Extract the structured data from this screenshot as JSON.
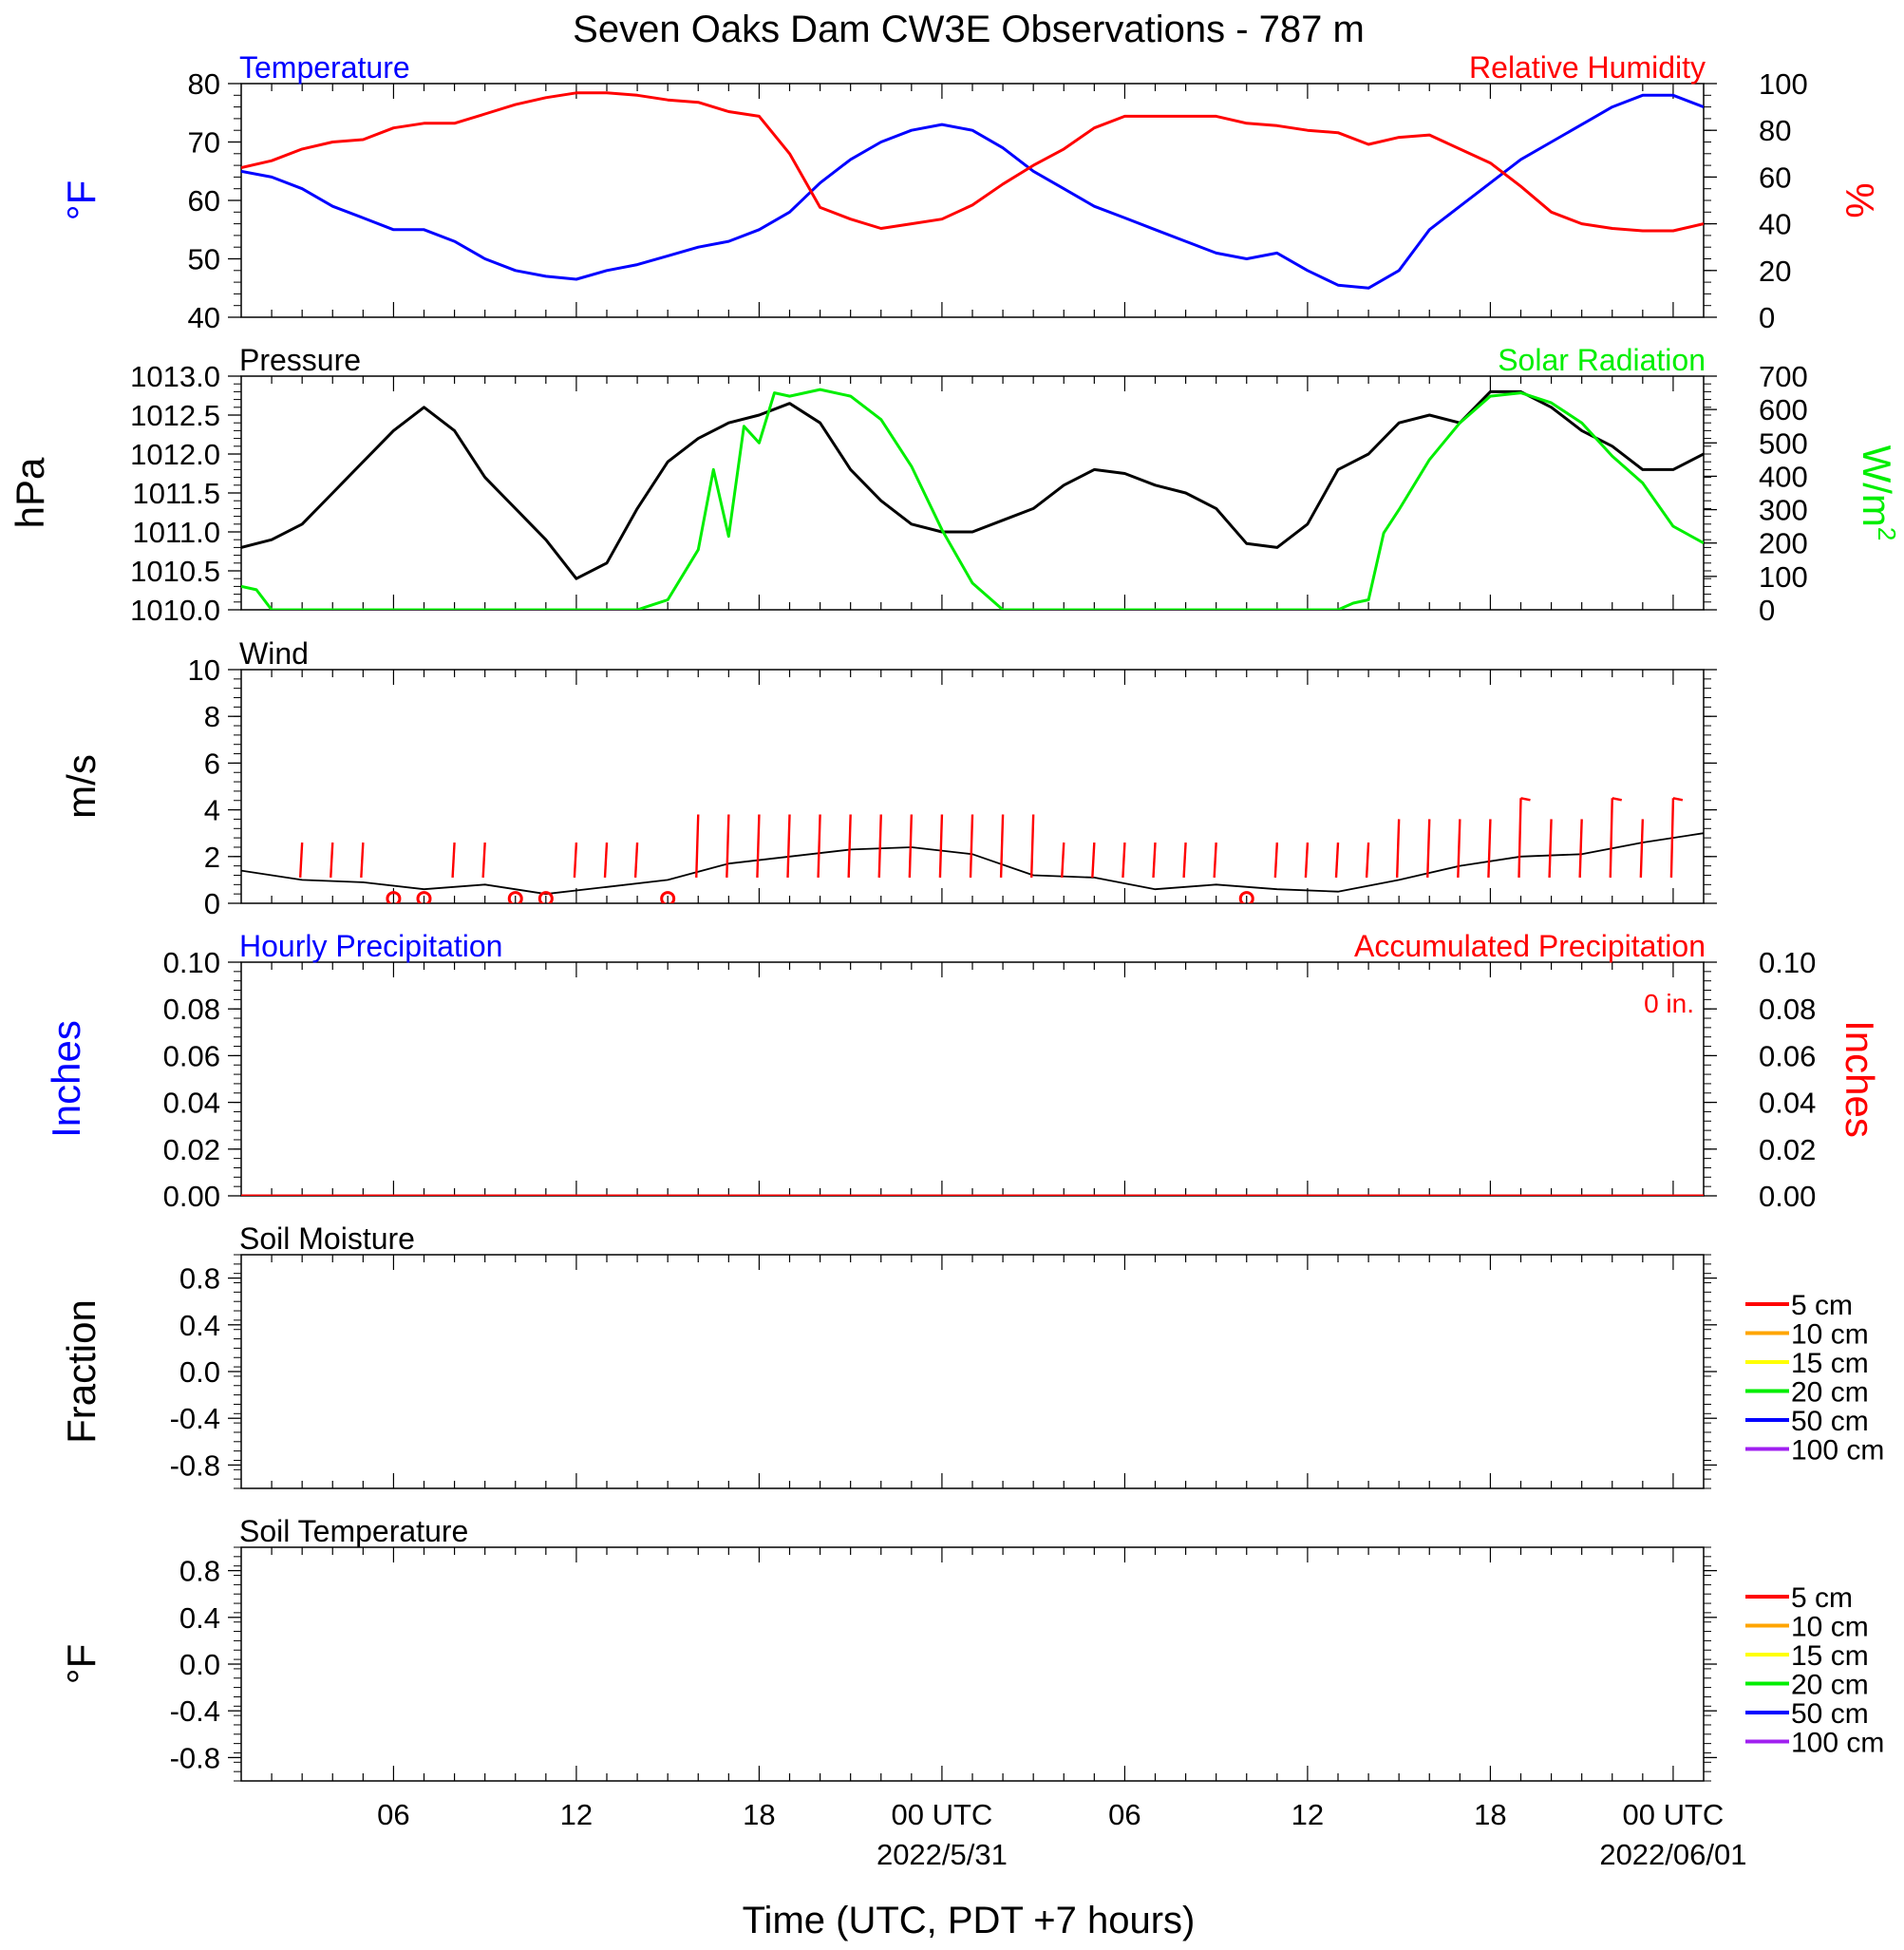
{
  "figure": {
    "title": "Seven Oaks Dam CW3E Observations - 787 m",
    "xlabel": "Time (UTC, PDT +7 hours)"
  },
  "time_axis": {
    "unit": "hours since 2022-05-30 01 UTC (first plotted hour)",
    "domain": [
      0,
      48
    ],
    "ticks": [
      {
        "h": 5,
        "label": "06"
      },
      {
        "h": 11,
        "label": "12"
      },
      {
        "h": 17,
        "label": "18"
      },
      {
        "h": 23,
        "label": "00 UTC",
        "sublabel": "2022/5/31"
      },
      {
        "h": 29,
        "label": "06"
      },
      {
        "h": 35,
        "label": "12"
      },
      {
        "h": 41,
        "label": "18"
      },
      {
        "h": 47,
        "label": "00 UTC",
        "sublabel": "2022/06/01"
      }
    ]
  },
  "colors": {
    "temperature": "#0000ff",
    "humidity": "#ff0000",
    "pressure": "#000000",
    "solar": "#00ee00",
    "wind": "#000000",
    "wind_barb": "#ff0000",
    "hourly_precip": "#0000ff",
    "accum_precip": "#ff0000",
    "depths": [
      "#ff0000",
      "#ffa500",
      "#ffff00",
      "#00ee00",
      "#0000ff",
      "#a020f0"
    ]
  },
  "chart_data": [
    {
      "type": "line",
      "title": "Temperature",
      "right_title": "Relative Humidity",
      "ylabel": "°F",
      "ylabel_right": "%",
      "ylim": [
        40,
        80
      ],
      "yticks": [
        "80",
        "70",
        "60",
        "50",
        "40"
      ],
      "ylim_right": [
        0,
        100
      ],
      "yticks_right": [
        "100",
        "80",
        "60",
        "40",
        "20",
        "0"
      ],
      "series": [
        {
          "name": "Temperature",
          "axis": "left",
          "x": [
            0,
            1,
            2,
            3,
            4,
            5,
            6,
            7,
            8,
            9,
            10,
            11,
            12,
            13,
            14,
            15,
            16,
            17,
            18,
            19,
            20,
            21,
            22,
            23,
            24,
            25,
            26,
            27,
            28,
            29,
            30,
            31,
            32,
            33,
            34,
            35,
            36,
            37,
            38,
            39,
            40,
            41,
            42,
            43,
            44,
            45,
            46,
            47,
            48
          ],
          "y": [
            65,
            64,
            62,
            59,
            57,
            55,
            55,
            53,
            50,
            48,
            47,
            46.5,
            48,
            49,
            50.5,
            52,
            53,
            55,
            58,
            63,
            67,
            70,
            72,
            73,
            72,
            69,
            65,
            62,
            59,
            57,
            55,
            53,
            51,
            50,
            51,
            48,
            45.5,
            45,
            48,
            55,
            59,
            63,
            67,
            70,
            73,
            76,
            78,
            78,
            76
          ]
        },
        {
          "name": "Relative Humidity",
          "axis": "right",
          "x": [
            0,
            1,
            2,
            3,
            4,
            5,
            6,
            7,
            8,
            9,
            10,
            11,
            12,
            13,
            14,
            15,
            16,
            17,
            18,
            19,
            20,
            21,
            22,
            23,
            24,
            25,
            26,
            27,
            28,
            29,
            30,
            31,
            32,
            33,
            34,
            35,
            36,
            37,
            38,
            39,
            40,
            41,
            42,
            43,
            44,
            45,
            46,
            47,
            48
          ],
          "y": [
            64,
            67,
            72,
            75,
            76,
            81,
            83,
            83,
            87,
            91,
            94,
            96,
            96,
            95,
            93,
            92,
            88,
            86,
            70,
            47,
            42,
            38,
            40,
            42,
            48,
            57,
            65,
            72,
            81,
            86,
            86,
            86,
            86,
            83,
            82,
            80,
            79,
            74,
            77,
            78,
            72,
            66,
            56,
            45,
            40,
            38,
            37,
            37,
            40
          ]
        }
      ]
    },
    {
      "type": "line",
      "title": "Pressure",
      "right_title": "Solar Radiation",
      "ylabel": "hPa",
      "ylabel_right": "W/m",
      "ylabel_right_sup": "2",
      "ylim": [
        1010.0,
        1013.0
      ],
      "yticks": [
        "1013.0",
        "1012.5",
        "1012.0",
        "1011.5",
        "1011.0",
        "1010.5",
        "1010.0"
      ],
      "ylim_right": [
        0,
        700
      ],
      "yticks_right": [
        "700",
        "600",
        "500",
        "400",
        "300",
        "200",
        "100",
        "0"
      ],
      "series": [
        {
          "name": "Pressure",
          "axis": "left",
          "x": [
            0,
            1,
            2,
            3,
            4,
            5,
            6,
            7,
            8,
            9,
            10,
            11,
            12,
            13,
            14,
            15,
            16,
            17,
            18,
            19,
            20,
            21,
            22,
            23,
            24,
            25,
            26,
            27,
            28,
            29,
            30,
            31,
            32,
            33,
            34,
            35,
            36,
            37,
            38,
            39,
            40,
            41,
            42,
            43,
            44,
            45,
            46,
            47,
            48
          ],
          "y": [
            1010.8,
            1010.9,
            1011.1,
            1011.5,
            1011.9,
            1012.3,
            1012.6,
            1012.3,
            1011.7,
            1011.3,
            1010.9,
            1010.4,
            1010.6,
            1011.3,
            1011.9,
            1012.2,
            1012.4,
            1012.5,
            1012.65,
            1012.4,
            1011.8,
            1011.4,
            1011.1,
            1011.0,
            1011.0,
            1011.15,
            1011.3,
            1011.6,
            1011.8,
            1011.75,
            1011.6,
            1011.5,
            1011.3,
            1010.85,
            1010.8,
            1011.1,
            1011.8,
            1012.0,
            1012.4,
            1012.5,
            1012.4,
            1012.8,
            1012.8,
            1012.6,
            1012.3,
            1012.1,
            1011.8,
            1011.8,
            1012.0
          ]
        },
        {
          "name": "Solar Radiation",
          "axis": "right",
          "x": [
            0,
            0.5,
            1,
            13,
            14,
            15,
            15.5,
            16,
            16.5,
            17,
            17.5,
            18,
            19,
            20,
            21,
            22,
            23,
            24,
            25,
            36,
            36.5,
            37,
            37.5,
            38,
            39,
            40,
            41,
            42,
            43,
            44,
            45,
            46,
            47,
            48
          ],
          "y": [
            70,
            60,
            0,
            0,
            30,
            180,
            420,
            220,
            550,
            500,
            650,
            640,
            660,
            640,
            570,
            430,
            240,
            80,
            0,
            0,
            20,
            30,
            230,
            300,
            450,
            560,
            640,
            650,
            620,
            560,
            460,
            380,
            250,
            200
          ]
        }
      ]
    },
    {
      "type": "line",
      "title": "Wind",
      "ylabel": "m/s",
      "ylim": [
        0,
        10
      ],
      "yticks": [
        "10",
        "8",
        "6",
        "4",
        "2",
        "0"
      ],
      "series": [
        {
          "name": "Wind",
          "x": [
            0,
            2,
            4,
            6,
            8,
            10,
            12,
            14,
            16,
            18,
            20,
            22,
            24,
            26,
            28,
            30,
            32,
            34,
            36,
            38,
            40,
            42,
            44,
            46,
            48
          ],
          "y": [
            1.4,
            1.0,
            0.9,
            0.6,
            0.8,
            0.4,
            0.7,
            1.0,
            1.7,
            2.0,
            2.3,
            2.4,
            2.1,
            1.2,
            1.1,
            0.6,
            0.8,
            0.6,
            0.5,
            1.0,
            1.6,
            2.0,
            2.1,
            2.6,
            3.0
          ]
        }
      ],
      "calm_marks_x": [
        5,
        6,
        9,
        10,
        14,
        33
      ],
      "barbs_x": [
        2,
        3,
        4,
        7,
        8,
        11,
        12,
        13,
        15,
        16,
        17,
        18,
        19,
        20,
        21,
        22,
        23,
        24,
        25,
        26,
        27,
        28,
        29,
        30,
        31,
        32,
        34,
        35,
        36,
        37,
        38,
        39,
        40,
        41,
        42,
        43,
        44,
        45,
        46,
        47
      ],
      "barbs_flagged_x": [
        42,
        45,
        47
      ]
    },
    {
      "type": "line",
      "title": "Hourly Precipitation",
      "right_title": "Accumulated Precipitation",
      "annotation": "0 in.",
      "ylabel": "Inches",
      "ylabel_right": "Inches",
      "ylim": [
        0,
        0.1
      ],
      "yticks": [
        "0.10",
        "0.08",
        "0.06",
        "0.04",
        "0.02",
        "0.00"
      ],
      "ylim_right": [
        0,
        0.1
      ],
      "yticks_right": [
        "0.10",
        "0.08",
        "0.06",
        "0.04",
        "0.02",
        "0.00"
      ],
      "series": [
        {
          "name": "Accumulated Precipitation",
          "axis": "right",
          "x": [
            0,
            48
          ],
          "y": [
            0,
            0
          ]
        }
      ]
    },
    {
      "type": "line",
      "title": "Soil Moisture",
      "ylabel": "Fraction",
      "ylim": [
        -1,
        1
      ],
      "yticks": [
        "0.8",
        "0.4",
        "0.0",
        "-0.4",
        "-0.8"
      ],
      "legend": [
        "5 cm",
        "10 cm",
        "15 cm",
        "20 cm",
        "50 cm",
        "100 cm"
      ],
      "legend_position": "right",
      "series": []
    },
    {
      "type": "line",
      "title": "Soil Temperature",
      "ylabel": "°F",
      "ylim": [
        -1,
        1
      ],
      "yticks": [
        "0.8",
        "0.4",
        "0.0",
        "-0.4",
        "-0.8"
      ],
      "legend": [
        "5 cm",
        "10 cm",
        "15 cm",
        "20 cm",
        "50 cm",
        "100 cm"
      ],
      "legend_position": "right",
      "series": []
    }
  ]
}
